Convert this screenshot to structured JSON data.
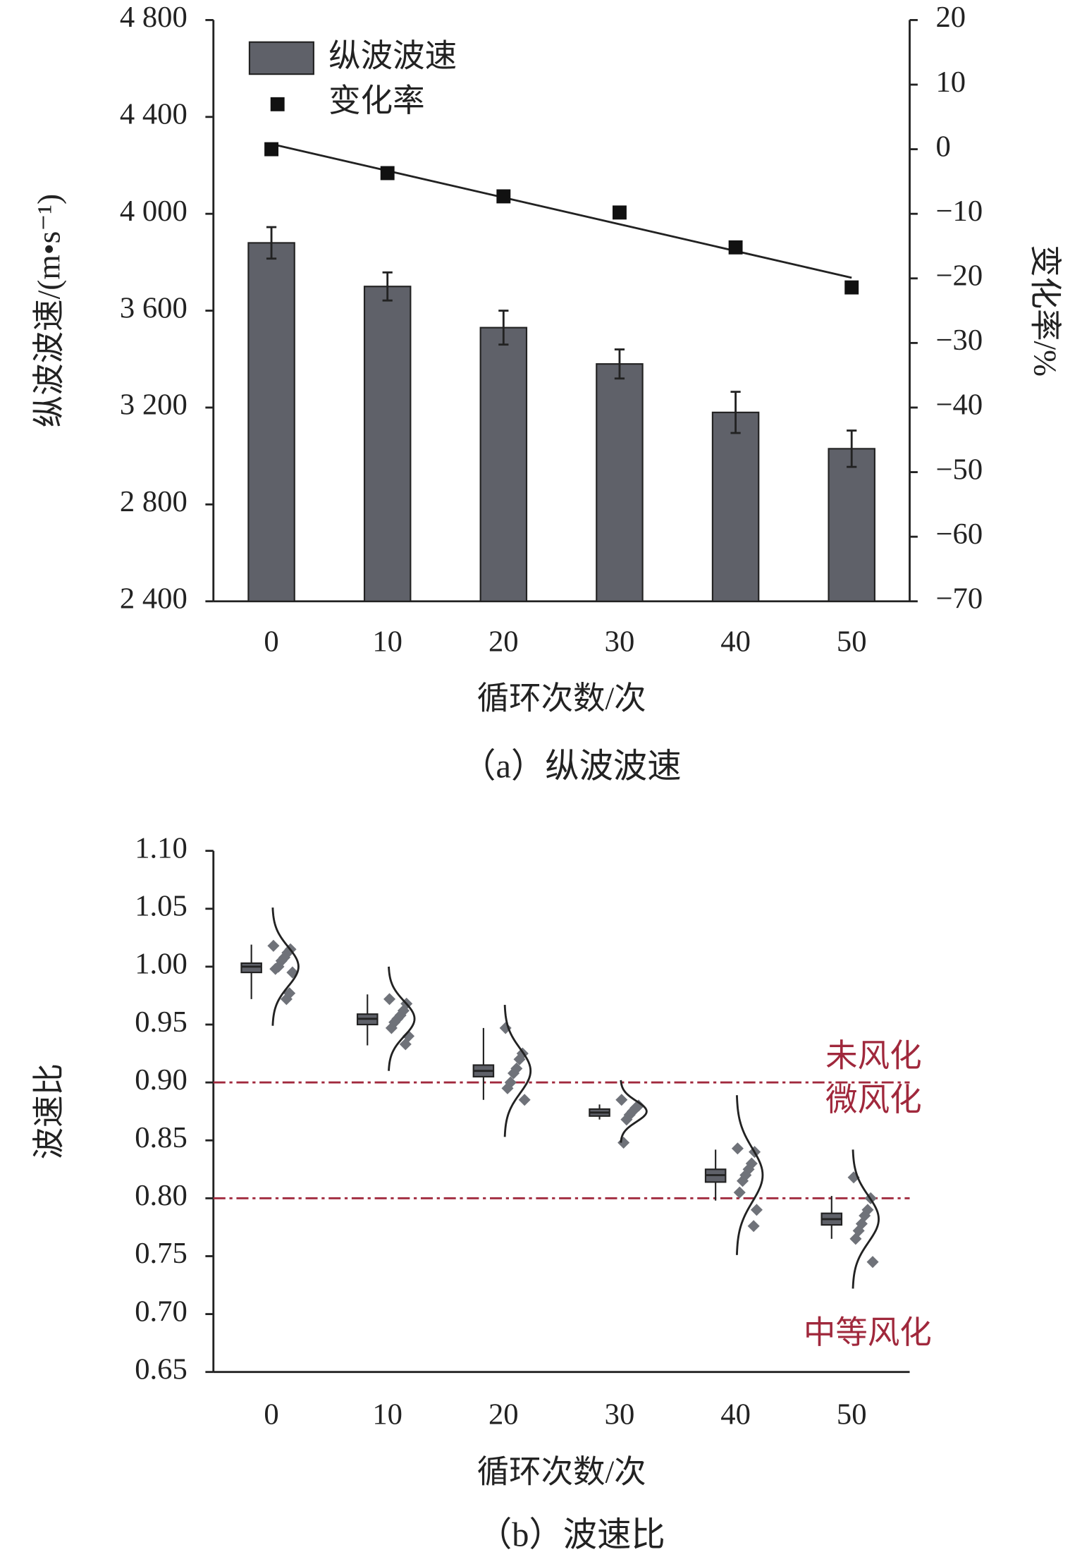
{
  "chart_data": [
    {
      "type": "bar",
      "caption": "（a）纵波波速",
      "xlabel": "循环次数/次",
      "ylabel": "纵波波速/(m•s⁻¹)",
      "y2label": "变化率/%",
      "categories": [
        0,
        10,
        20,
        30,
        40,
        50
      ],
      "series": [
        {
          "name": "纵波波速",
          "color": "#5f6169",
          "values": [
            3880,
            3700,
            3530,
            3380,
            3180,
            3030
          ],
          "errors": [
            65,
            58,
            70,
            60,
            85,
            75
          ]
        },
        {
          "name": "变化率",
          "axis": "y2",
          "color": "#111111",
          "values": [
            0,
            -3.7,
            -7.3,
            -9.8,
            -15.2,
            -21.4
          ],
          "trend": [
            0.8,
            -19.9
          ]
        }
      ],
      "ylim": [
        2400,
        4800
      ],
      "yticks": [
        {
          "value": 2400,
          "label": "2 400"
        },
        {
          "value": 2800,
          "label": "2 800"
        },
        {
          "value": 3200,
          "label": "3 200"
        },
        {
          "value": 3600,
          "label": "3 600"
        },
        {
          "value": 4000,
          "label": "4 000"
        },
        {
          "value": 4400,
          "label": "4 400"
        },
        {
          "value": 4800,
          "label": "4 800"
        }
      ],
      "y2lim": [
        -70,
        20
      ],
      "y2ticks": [
        {
          "value": -70,
          "label": "−70"
        },
        {
          "value": -60,
          "label": "−60"
        },
        {
          "value": -50,
          "label": "−50"
        },
        {
          "value": -40,
          "label": "−40"
        },
        {
          "value": -30,
          "label": "−30"
        },
        {
          "value": -20,
          "label": "−20"
        },
        {
          "value": -10,
          "label": "−10"
        },
        0,
        10,
        20
      ],
      "legend": "upper left"
    },
    {
      "type": "box",
      "caption": "（b）波速比",
      "xlabel": "循环次数/次",
      "ylabel": "波速比",
      "categories": [
        0,
        10,
        20,
        30,
        40,
        50
      ],
      "color": "#5f6169",
      "point_color": "#6f7279",
      "boxes": [
        {
          "whislo": 0.972,
          "q1": 0.995,
          "med": 1.0,
          "q3": 1.003,
          "whishi": 1.019
        },
        {
          "whislo": 0.932,
          "q1": 0.95,
          "med": 0.955,
          "q3": 0.959,
          "whishi": 0.976
        },
        {
          "whislo": 0.885,
          "q1": 0.905,
          "med": 0.91,
          "q3": 0.915,
          "whishi": 0.947
        },
        {
          "whislo": 0.868,
          "q1": 0.871,
          "med": 0.874,
          "q3": 0.877,
          "whishi": 0.881
        },
        {
          "whislo": 0.798,
          "q1": 0.814,
          "med": 0.82,
          "q3": 0.825,
          "whishi": 0.842
        },
        {
          "whislo": 0.765,
          "q1": 0.777,
          "med": 0.782,
          "q3": 0.787,
          "whishi": 0.802
        }
      ],
      "points": [
        [
          1.018,
          1.015,
          1.012,
          1.008,
          1.005,
          1.0,
          0.998,
          0.995,
          0.977,
          0.972
        ],
        [
          0.972,
          0.968,
          0.962,
          0.958,
          0.955,
          0.952,
          0.947,
          0.94,
          0.933
        ],
        [
          0.947,
          0.925,
          0.92,
          0.912,
          0.908,
          0.9,
          0.895,
          0.885
        ],
        [
          0.885,
          0.88,
          0.878,
          0.875,
          0.872,
          0.868,
          0.848
        ],
        [
          0.843,
          0.84,
          0.83,
          0.825,
          0.82,
          0.815,
          0.805,
          0.79,
          0.776
        ],
        [
          0.818,
          0.8,
          0.79,
          0.785,
          0.778,
          0.772,
          0.765,
          0.745
        ]
      ],
      "fits": [
        {
          "mean": 1.0,
          "sd": 0.017
        },
        {
          "mean": 0.955,
          "sd": 0.015
        },
        {
          "mean": 0.91,
          "sd": 0.019
        },
        {
          "mean": 0.875,
          "sd": 0.009
        },
        {
          "mean": 0.82,
          "sd": 0.023
        },
        {
          "mean": 0.782,
          "sd": 0.02
        }
      ],
      "ylim": [
        0.65,
        1.1
      ],
      "yticks": [
        0.65,
        {
          "value": 0.7,
          "label": "0.70"
        },
        0.75,
        {
          "value": 0.8,
          "label": "0.80"
        },
        0.85,
        {
          "value": 0.9,
          "label": "0.90"
        },
        0.95,
        {
          "value": 1.0,
          "label": "1.00"
        },
        1.05,
        {
          "value": 1.1,
          "label": "1.10"
        }
      ],
      "thresholds": {
        "color": "#a0283c",
        "values": [
          0.9,
          0.8
        ]
      },
      "annotations": [
        "未风化",
        "微风化",
        "中等风化"
      ]
    }
  ]
}
